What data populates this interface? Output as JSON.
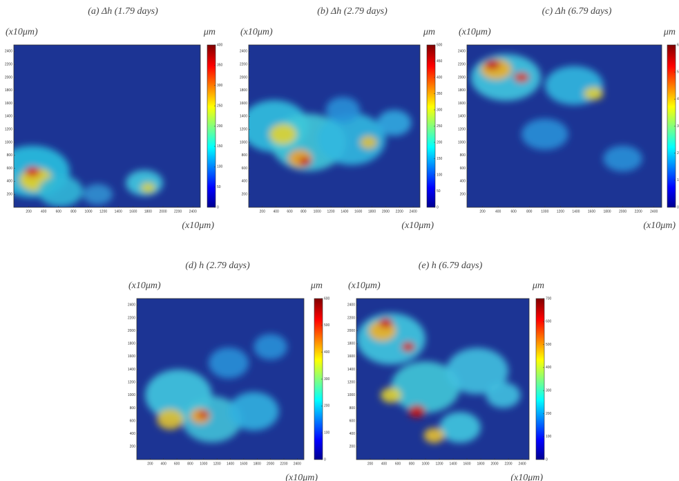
{
  "chart_data": [
    {
      "type": "heatmap",
      "title": "(a) Δh (1.79 days)",
      "ylabel": "(x10μm)",
      "xlabel": "(x10μm)",
      "colorbar_label": "μm",
      "xlim": [
        0,
        2500
      ],
      "ylim": [
        0,
        2500
      ],
      "xticks": [
        200,
        400,
        600,
        800,
        1000,
        1200,
        1400,
        1600,
        1800,
        2000,
        2200,
        2400
      ],
      "yticks": [
        200,
        400,
        600,
        800,
        1000,
        1200,
        1400,
        1600,
        1800,
        2000,
        2200,
        2400
      ],
      "clim": [
        0,
        400
      ],
      "cticks": [
        0,
        50,
        100,
        150,
        200,
        250,
        300,
        350,
        400
      ]
    },
    {
      "type": "heatmap",
      "title": "(b) Δh (2.79 days)",
      "ylabel": "(x10μm)",
      "xlabel": "(x10μm)",
      "colorbar_label": "μm",
      "xlim": [
        0,
        2500
      ],
      "ylim": [
        0,
        2500
      ],
      "xticks": [
        200,
        400,
        600,
        800,
        1000,
        1200,
        1400,
        1600,
        1800,
        2000,
        2200,
        2400
      ],
      "yticks": [
        200,
        400,
        600,
        800,
        1000,
        1200,
        1400,
        1600,
        1800,
        2000,
        2200,
        2400
      ],
      "clim": [
        0,
        500
      ],
      "cticks": [
        0,
        50,
        100,
        150,
        200,
        250,
        300,
        350,
        400,
        450,
        500
      ]
    },
    {
      "type": "heatmap",
      "title": "(c) Δh (6.79 days)",
      "ylabel": "(x10μm)",
      "xlabel": "(x10μm)",
      "colorbar_label": "μm",
      "xlim": [
        0,
        2500
      ],
      "ylim": [
        0,
        2500
      ],
      "xticks": [
        200,
        400,
        600,
        800,
        1000,
        1200,
        1400,
        1600,
        1800,
        2000,
        2200,
        2400
      ],
      "yticks": [
        200,
        400,
        600,
        800,
        1000,
        1200,
        1400,
        1600,
        1800,
        2000,
        2200,
        2400
      ],
      "clim": [
        0,
        600
      ],
      "cticks": [
        0,
        100,
        200,
        300,
        400,
        500,
        600
      ]
    },
    {
      "type": "heatmap",
      "title": "(d) h (2.79 days)",
      "ylabel": "(x10μm)",
      "xlabel": "(x10μm)",
      "colorbar_label": "μm",
      "xlim": [
        0,
        2500
      ],
      "ylim": [
        0,
        2500
      ],
      "xticks": [
        200,
        400,
        600,
        800,
        1000,
        1200,
        1400,
        1600,
        1800,
        2000,
        2200,
        2400
      ],
      "yticks": [
        200,
        400,
        600,
        800,
        1000,
        1200,
        1400,
        1600,
        1800,
        2000,
        2200,
        2400
      ],
      "clim": [
        0,
        600
      ],
      "cticks": [
        0,
        100,
        200,
        300,
        400,
        500,
        600
      ]
    },
    {
      "type": "heatmap",
      "title": "(e) h (6.79 days)",
      "ylabel": "(x10μm)",
      "xlabel": "(x10μm)",
      "colorbar_label": "μm",
      "xlim": [
        0,
        2500
      ],
      "ylim": [
        0,
        2500
      ],
      "xticks": [
        200,
        400,
        600,
        800,
        1000,
        1200,
        1400,
        1600,
        1800,
        2000,
        2200,
        2400
      ],
      "yticks": [
        200,
        400,
        600,
        800,
        1000,
        1200,
        1400,
        1600,
        1800,
        2000,
        2200,
        2400
      ],
      "clim": [
        0,
        700
      ],
      "cticks": [
        0,
        100,
        200,
        300,
        400,
        500,
        600,
        700
      ]
    }
  ]
}
